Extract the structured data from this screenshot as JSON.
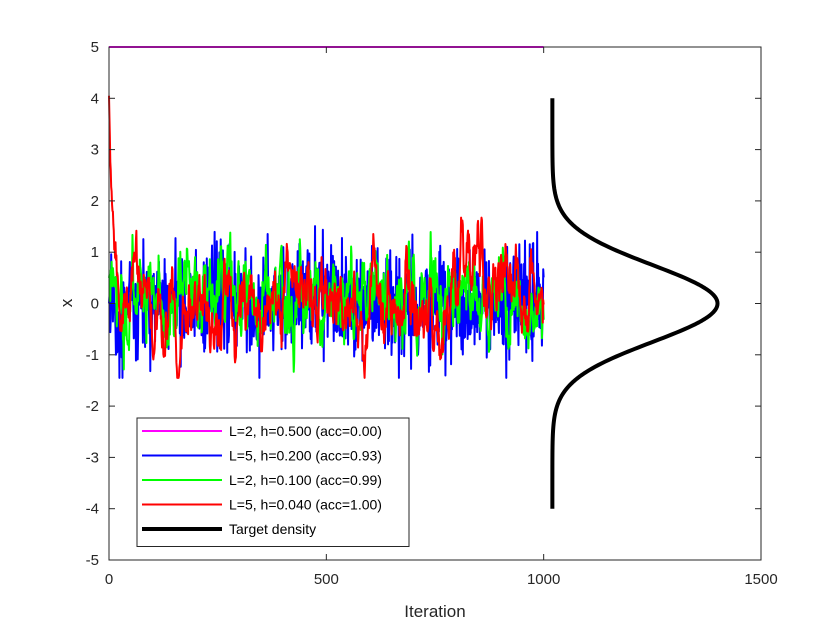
{
  "chart_data": {
    "type": "line",
    "title": "",
    "xlabel": "Iteration",
    "ylabel": "x",
    "xlim": [
      0,
      1500
    ],
    "ylim": [
      -5,
      5
    ],
    "xticks": [
      "0",
      "500",
      "1000",
      "1500"
    ],
    "yticks": [
      "-5",
      "-4",
      "-3",
      "-2",
      "-1",
      "0",
      "1",
      "2",
      "3",
      "4",
      "5"
    ],
    "grid": false,
    "legend_position": "bottom-left",
    "n_iterations": 1000,
    "series": [
      {
        "name": "L=2, h=0.500 (acc=0.00)",
        "color": "#ff00ff",
        "style": "constant",
        "start": 5.0,
        "value": 5.0,
        "stddev": 0.0,
        "seed": 0
      },
      {
        "name": "L=5, h=0.200 (acc=0.93)",
        "color": "#0000ff",
        "style": "noise",
        "start": 0.0,
        "value": 0.0,
        "stddev": 0.52,
        "seed": 7
      },
      {
        "name": "L=2, h=0.100 (acc=0.99)",
        "color": "#00ff00",
        "style": "ar1",
        "start": 0.5,
        "value": 0.0,
        "stddev": 0.5,
        "phi": 0.8,
        "seed": 23
      },
      {
        "name": "L=5, h=0.040 (acc=1.00)",
        "color": "#ff0000",
        "style": "ar1",
        "start": 4.05,
        "value": 0.0,
        "stddev": 0.5,
        "phi": 0.88,
        "seed": 51
      }
    ],
    "density": {
      "name": "Target density",
      "color": "#000000",
      "x_base": 1020,
      "x_peak": 1400,
      "mean": 0,
      "sd": 0.75,
      "y_range": [
        -4,
        4
      ]
    }
  }
}
